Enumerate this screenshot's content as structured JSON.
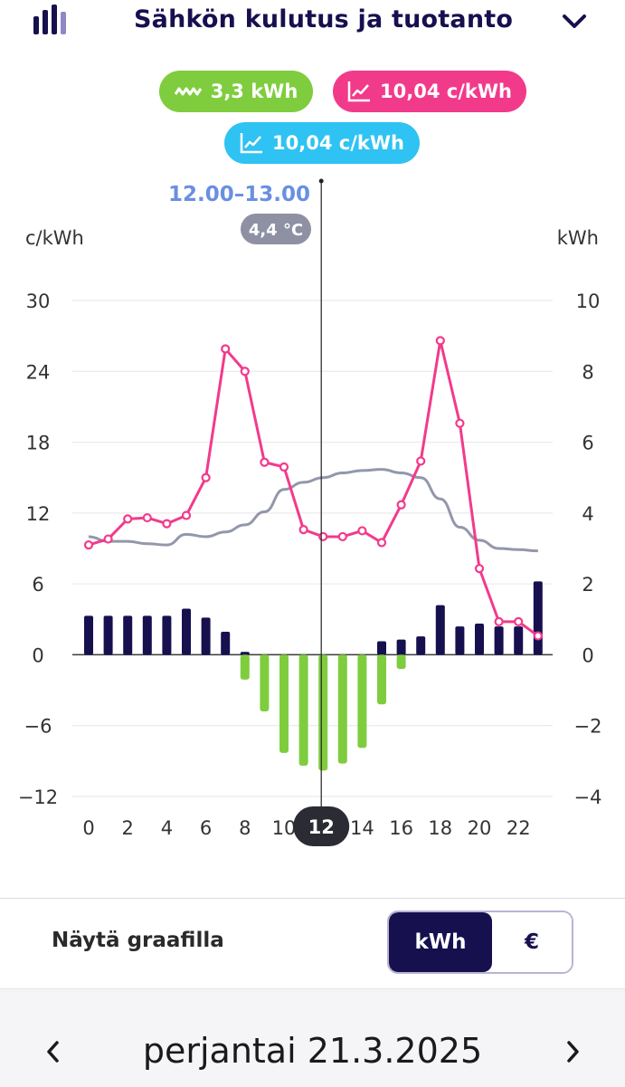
{
  "header": {
    "title": "Sähkön kulutus ja tuotanto"
  },
  "badges": {
    "production": "3,3 kWh",
    "spot_price": "10,04 c/kWh",
    "contract_price": "10,04 c/kWh"
  },
  "colors": {
    "navy": "#16104f",
    "green": "#7fcd3e",
    "pink": "#f23a8b",
    "blue": "#2ec3f3",
    "gray_line": "#9397ab",
    "time_label": "#6a8fe2"
  },
  "tooltip": {
    "time_range": "12.00–13.00",
    "temperature": "4,4 °C",
    "selected_hour_label": "12"
  },
  "chart_data": {
    "type": "bar+line",
    "left_axis": {
      "label": "c/kWh",
      "range": [
        -12,
        30
      ],
      "ticks": [
        "30",
        "24",
        "18",
        "12",
        "6",
        "0",
        "−6",
        "−12"
      ]
    },
    "right_axis": {
      "label": "kWh",
      "range": [
        -4,
        10
      ],
      "ticks": [
        "10",
        "8",
        "6",
        "4",
        "2",
        "0",
        "−2",
        "−4"
      ]
    },
    "x_ticks": [
      "0",
      "2",
      "4",
      "6",
      "8",
      "10",
      "12",
      "14",
      "16",
      "18",
      "20",
      "22"
    ],
    "hours": [
      0,
      1,
      2,
      3,
      4,
      5,
      6,
      7,
      8,
      9,
      10,
      11,
      12,
      13,
      14,
      15,
      16,
      17,
      18,
      19,
      20,
      21,
      22,
      23
    ],
    "consumption_kwh": [
      1.1,
      1.1,
      1.1,
      1.1,
      1.1,
      1.3,
      1.05,
      0.65,
      0.08,
      0,
      0,
      0,
      0,
      0,
      0,
      0.38,
      0.43,
      0.52,
      1.4,
      0.8,
      0.88,
      0.8,
      0.8,
      2.07
    ],
    "production_kwh": [
      0,
      0,
      0,
      0,
      0,
      0,
      0,
      0,
      -0.7,
      -1.6,
      -2.77,
      -3.13,
      -3.27,
      -3.07,
      -2.63,
      -1.4,
      -0.4,
      0,
      0,
      0,
      0,
      0,
      0,
      0
    ],
    "spot_price_c_kwh": [
      9.3,
      9.8,
      11.5,
      11.6,
      11.1,
      11.8,
      15,
      25.9,
      24,
      16.3,
      15.9,
      10.6,
      10,
      10,
      10.5,
      9.5,
      12.7,
      16.4,
      26.6,
      19.6,
      7.3,
      2.8,
      2.8,
      1.6
    ],
    "temperature_trend_c_kwh": [
      10,
      9.6,
      9.6,
      9.4,
      9.3,
      10.2,
      10,
      10.4,
      11,
      12.1,
      14,
      14.6,
      15,
      15.4,
      15.6,
      15.7,
      15.4,
      15,
      13.2,
      10.8,
      9.7,
      9,
      8.9,
      8.8
    ],
    "selected_hour": 12
  },
  "controls": {
    "label": "Näytä graafilla",
    "unit_kwh": "kWh",
    "unit_eur": "€"
  },
  "footer": {
    "date": "perjantai 21.3.2025"
  }
}
